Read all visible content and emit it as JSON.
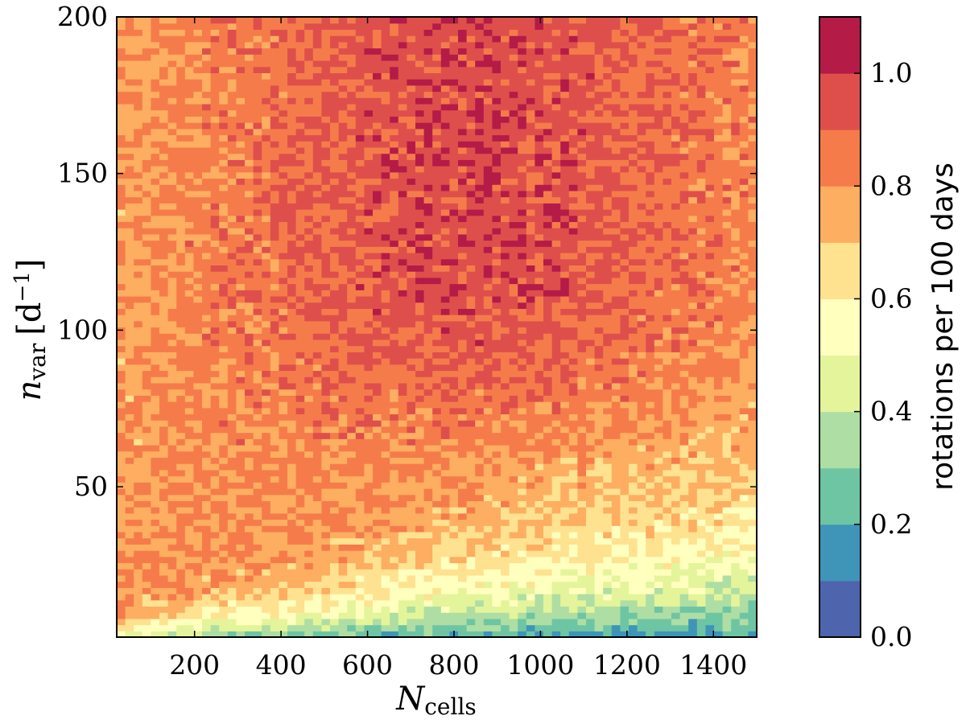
{
  "chart_data": {
    "type": "heatmap",
    "plot_style": "filled contour",
    "title": "",
    "xlabel": {
      "main": "N",
      "sub": "cells"
    },
    "ylabel": {
      "main": "n",
      "sub": "var",
      "unit_open": "[d",
      "unit_exp": "−1",
      "unit_close": "]"
    },
    "xlim": [
      20,
      1500
    ],
    "ylim": [
      2,
      200
    ],
    "x_ticks": [
      200,
      400,
      600,
      800,
      1000,
      1200,
      1400
    ],
    "y_ticks": [
      50,
      100,
      150,
      200
    ],
    "colorbar": {
      "label": "rotations per 100 days",
      "range": [
        0.0,
        1.1
      ],
      "tick_values": [
        0.0,
        0.2,
        0.4,
        0.6,
        0.8,
        1.0
      ],
      "tick_labels": [
        "0.0",
        "0.2",
        "0.4",
        "0.6",
        "0.8",
        "1.0"
      ],
      "levels": [
        0.0,
        0.1,
        0.2,
        0.3,
        0.4,
        0.5,
        0.6,
        0.7,
        0.8,
        0.9,
        1.0,
        1.1
      ],
      "colors": [
        "#4e64ad",
        "#3e95b8",
        "#6ec5a4",
        "#aedea3",
        "#e4f49a",
        "#ffffbe",
        "#fee290",
        "#fdae61",
        "#f57c4a",
        "#de4f4c",
        "#b51b47"
      ]
    },
    "colormap": "Spectral_r",
    "surface_trend": "value rises with n_var and falls with N_cells; maximum ~0.95 at N_cells 600-1000, n_var 100-190; minimum ~0.1 at N_cells > 900, n_var < 5"
  }
}
